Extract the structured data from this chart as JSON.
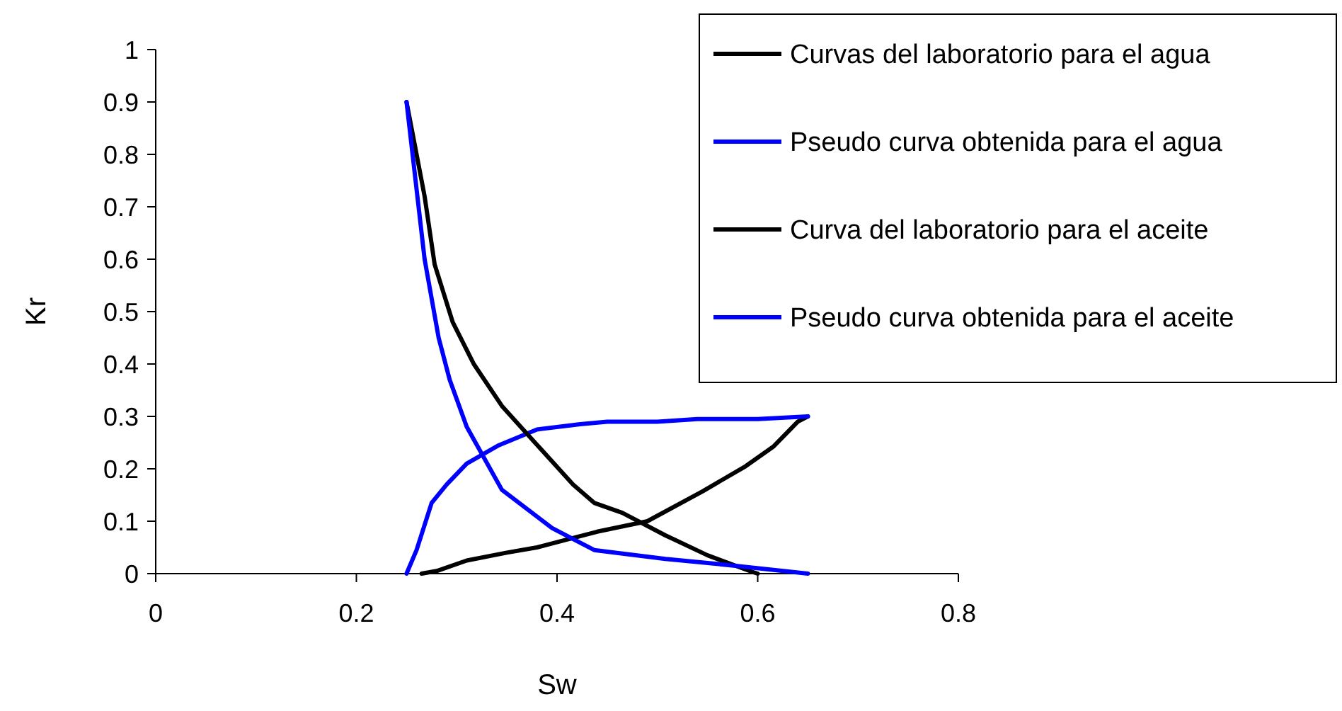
{
  "chart_data": {
    "type": "line",
    "xlabel": "Sw",
    "ylabel": "Kr",
    "xlim": [
      0,
      0.8
    ],
    "ylim": [
      0,
      1
    ],
    "xticks": [
      0,
      0.2,
      0.4,
      0.6,
      0.8
    ],
    "yticks": [
      0,
      0.1,
      0.2,
      0.3,
      0.4,
      0.5,
      0.6,
      0.7,
      0.8,
      0.9,
      1
    ],
    "legend": "top right",
    "line_style": "solid",
    "series": [
      {
        "name": "Curvas del laboratorio para el agua",
        "color": "#000000",
        "x": [
          0.265,
          0.28,
          0.31,
          0.35,
          0.38,
          0.41,
          0.44,
          0.49,
          0.545,
          0.588,
          0.616,
          0.64,
          0.65
        ],
        "values": [
          0,
          0.005,
          0.025,
          0.04,
          0.05,
          0.065,
          0.08,
          0.1,
          0.157,
          0.205,
          0.243,
          0.29,
          0.3
        ]
      },
      {
        "name": "Pseudo curva obtenida para el agua",
        "color": "#0000ff",
        "x": [
          0.25,
          0.26,
          0.275,
          0.29,
          0.31,
          0.342,
          0.38,
          0.423,
          0.45,
          0.5,
          0.54,
          0.6,
          0.65
        ],
        "values": [
          0,
          0.045,
          0.135,
          0.17,
          0.21,
          0.245,
          0.275,
          0.285,
          0.29,
          0.29,
          0.295,
          0.295,
          0.3
        ]
      },
      {
        "name": "Curva del laboratorio para el aceite",
        "color": "#000000",
        "x": [
          0.25,
          0.268,
          0.278,
          0.296,
          0.317,
          0.345,
          0.378,
          0.416,
          0.437,
          0.465,
          0.508,
          0.55,
          0.592,
          0.6
        ],
        "values": [
          0.9,
          0.72,
          0.59,
          0.48,
          0.4,
          0.32,
          0.25,
          0.17,
          0.135,
          0.116,
          0.073,
          0.035,
          0.005,
          0
        ]
      },
      {
        "name": "Pseudo curva obtenida para el aceite",
        "color": "#0000ff",
        "x": [
          0.25,
          0.268,
          0.282,
          0.293,
          0.31,
          0.345,
          0.395,
          0.437,
          0.508,
          0.578,
          0.65
        ],
        "values": [
          0.9,
          0.6,
          0.45,
          0.37,
          0.28,
          0.16,
          0.087,
          0.045,
          0.028,
          0.015,
          0
        ]
      }
    ]
  }
}
